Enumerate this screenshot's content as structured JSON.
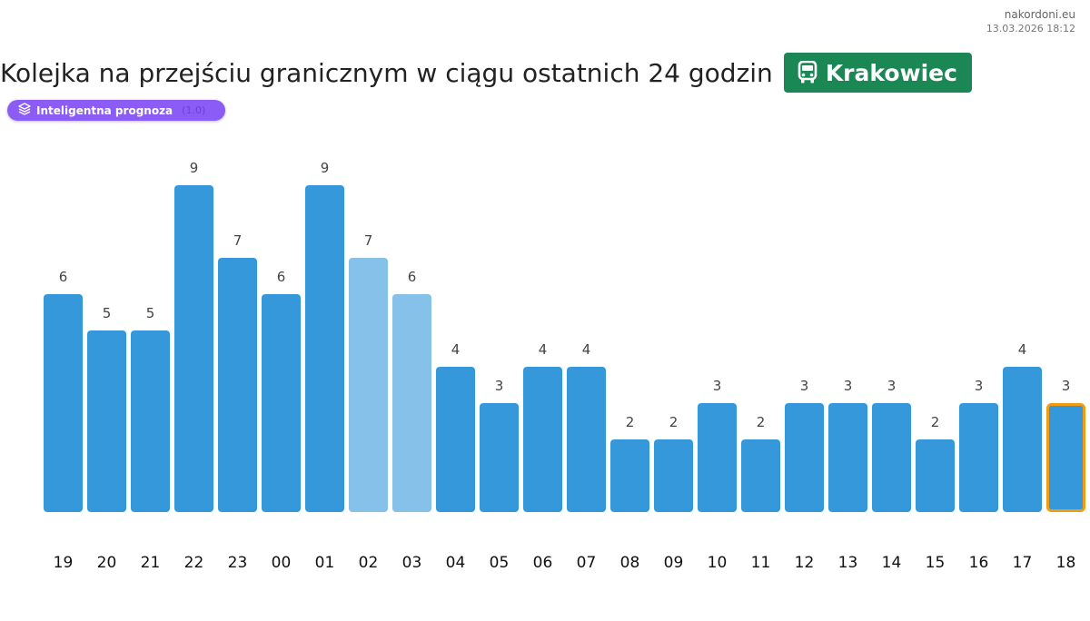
{
  "site": {
    "name": "nakordoni.eu",
    "timestamp": "13.03.2026 18:12"
  },
  "header": {
    "title": "Kolejka na przejściu granicznym w ciągu ostatnich 24 godzin"
  },
  "crossing": {
    "icon": "bus-icon",
    "name": "Krakowiec",
    "color": "#1a8754"
  },
  "forecast": {
    "icon": "layers-icon",
    "label": "Inteligentna prognoza",
    "extra": "(1.0)",
    "color": "#8b5cf6"
  },
  "chart_data": {
    "type": "bar",
    "title": "",
    "xlabel": "",
    "ylabel": "",
    "ylim": [
      0,
      9
    ],
    "grid": false,
    "categories": [
      "19",
      "20",
      "21",
      "22",
      "23",
      "00",
      "01",
      "02",
      "03",
      "04",
      "05",
      "06",
      "07",
      "08",
      "09",
      "10",
      "11",
      "12",
      "13",
      "14",
      "15",
      "16",
      "17",
      "18"
    ],
    "values": [
      6,
      5,
      5,
      9,
      7,
      6,
      9,
      7,
      6,
      4,
      3,
      4,
      4,
      2,
      2,
      3,
      2,
      3,
      3,
      3,
      2,
      3,
      4,
      3
    ],
    "forecast_categories": [
      "02",
      "03"
    ],
    "highlighted_category": "18",
    "colors": {
      "actual": "#3498db",
      "forecast": "#85c1e9",
      "highlight_border": "#f39c12"
    }
  }
}
